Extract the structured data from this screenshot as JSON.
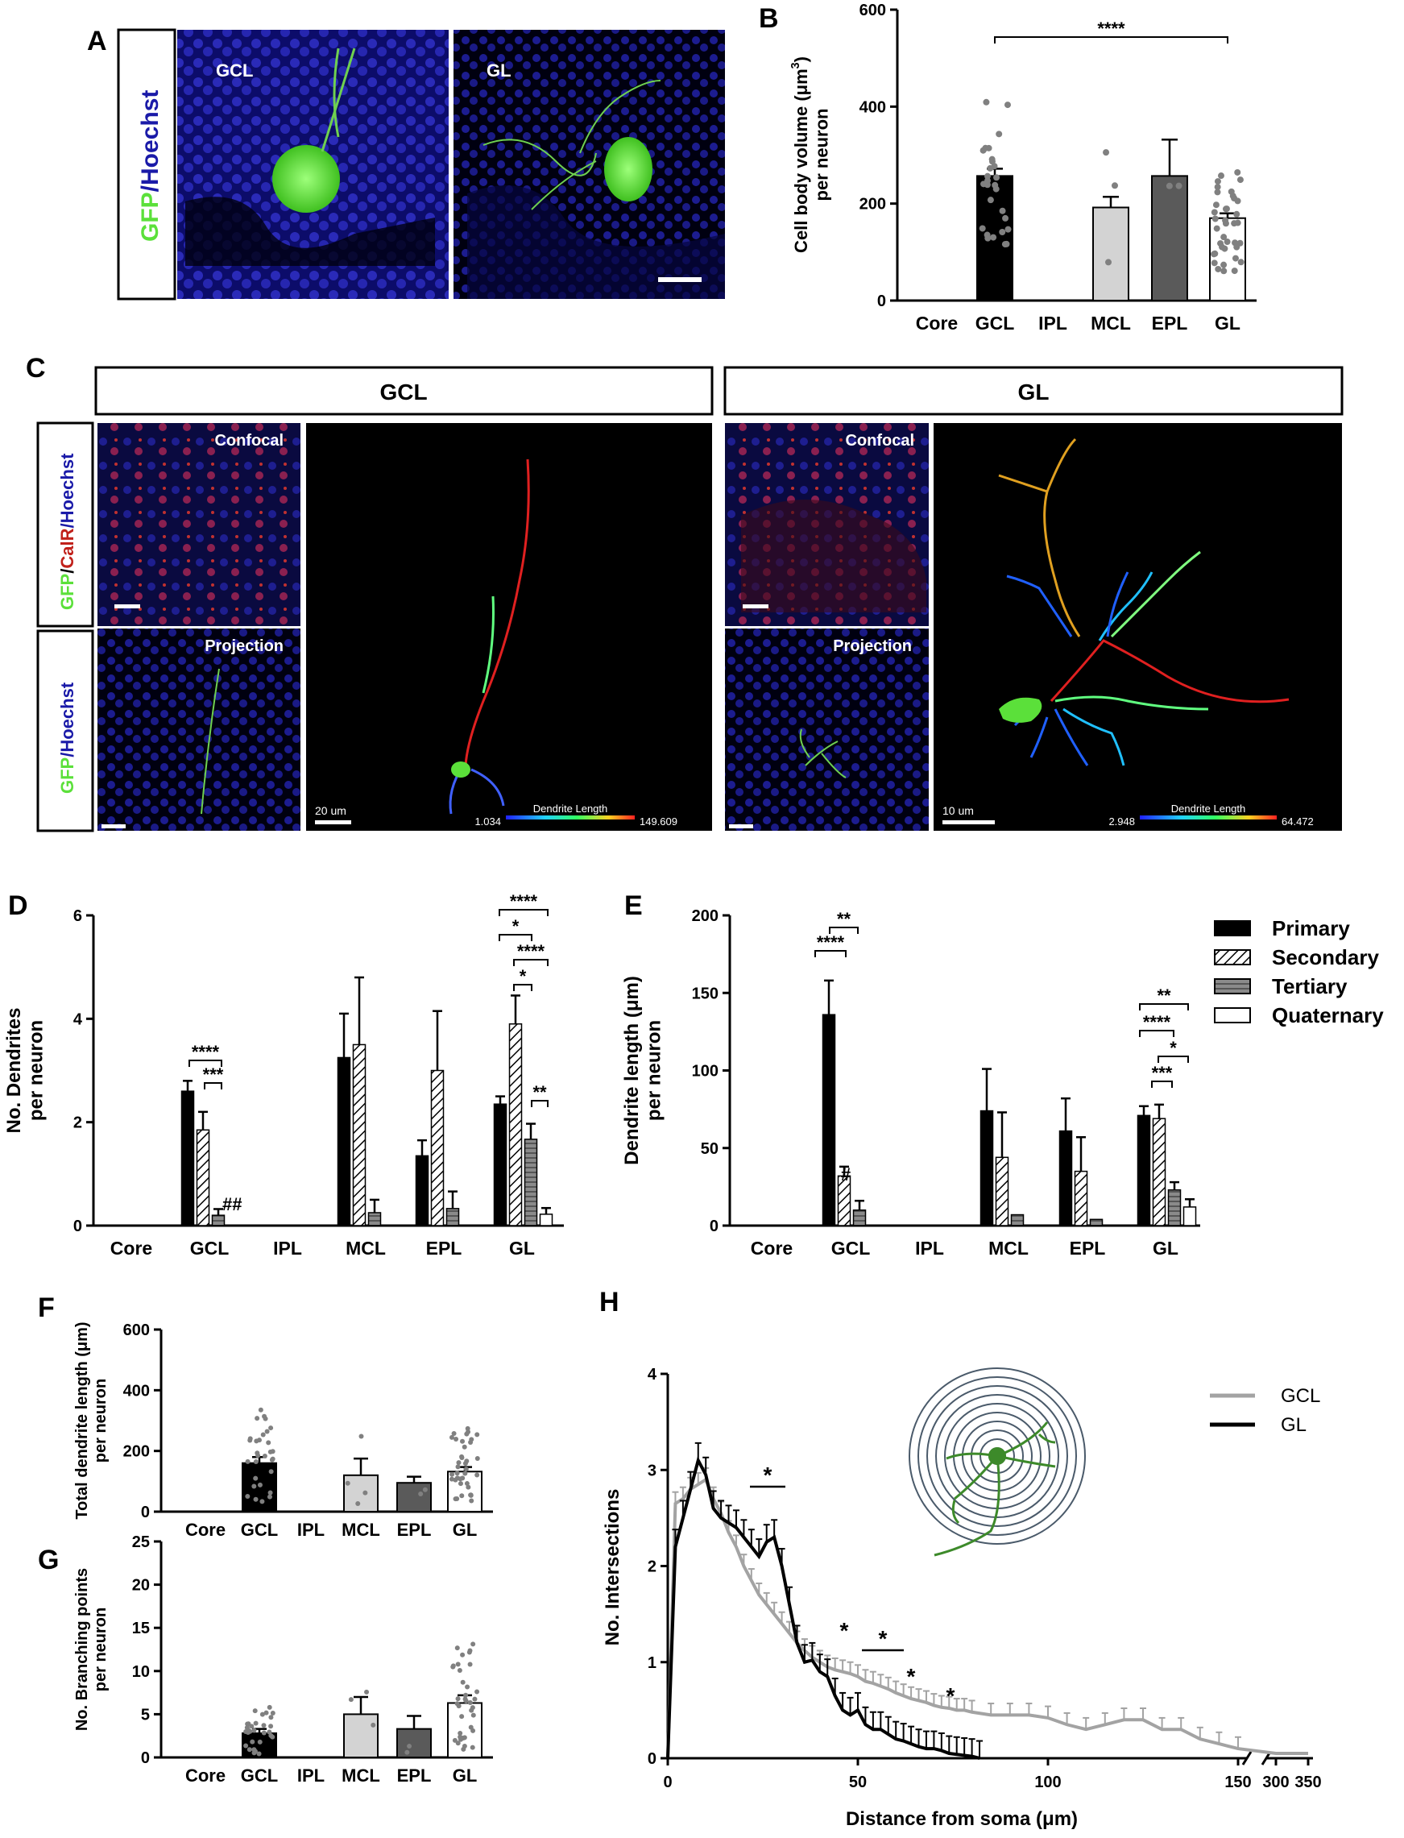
{
  "panels": {
    "A": {
      "label": "A",
      "stain_side": {
        "gfp": "GFP",
        "slash": "/",
        "hoechst": "Hoechst"
      },
      "images": [
        {
          "label": "GCL"
        },
        {
          "label": "GL"
        }
      ]
    },
    "C": {
      "label": "C",
      "headers": [
        "GCL",
        "GL"
      ],
      "side_stains": {
        "top": {
          "gfp": "GFP",
          "s1": "/",
          "calr": "CalR",
          "s2": "/",
          "hoechst": "Hoechst"
        },
        "bottom": {
          "gfp": "GFP",
          "slash": "/",
          "hoechst": "Hoechst"
        }
      },
      "image_labels": {
        "confocal": "Confocal",
        "projection": "Projection"
      },
      "reconstructions": [
        {
          "scale": "20 um",
          "min": "1.034",
          "max": "149.609",
          "legend": "Dendrite Length"
        },
        {
          "scale": "10 um",
          "min": "2.948",
          "max": "64.472",
          "legend": "Dendrite Length"
        }
      ]
    }
  },
  "colors": {
    "gfp": "#5be03a",
    "hoechst": "#1a1aa8",
    "calr": "#c0201a",
    "gcl_bar": "#000000",
    "mcl_bar": "#d3d3d3",
    "epl_bar": "#5a5a5a",
    "gl_bar": "#ffffff",
    "gcl_line": "#a3a3a3",
    "gl_line": "#000000",
    "sholl": "#4a5a6a"
  },
  "chart_data": [
    {
      "panel": "B",
      "type": "bar",
      "ylabel": "Cell body volume (μm³) per neuron",
      "ylabel_line1": "Cell body volume (μm",
      "ylabel_sup": "3",
      "ylabel_close": ")",
      "ylabel_line2": "per neuron",
      "categories": [
        "Core",
        "GCL",
        "IPL",
        "MCL",
        "EPL",
        "GL"
      ],
      "values": [
        null,
        257,
        null,
        192,
        257,
        170
      ],
      "errors": [
        null,
        15,
        null,
        22,
        75,
        10
      ],
      "ylim": [
        0,
        600
      ],
      "yticks": [
        "0",
        "200",
        "400",
        "600"
      ],
      "significance": "****"
    },
    {
      "panel": "D",
      "type": "bar",
      "ylabel_line1": "No. Dendrites",
      "ylabel_line2": "per neuron",
      "categories": [
        "Core",
        "GCL",
        "IPL",
        "MCL",
        "EPL",
        "GL"
      ],
      "series": [
        {
          "name": "Primary",
          "values": [
            null,
            2.6,
            null,
            3.25,
            1.35,
            2.35
          ],
          "errors": [
            null,
            0.2,
            null,
            0.85,
            0.3,
            0.15
          ]
        },
        {
          "name": "Secondary",
          "values": [
            null,
            1.85,
            null,
            3.5,
            3.0,
            3.9
          ],
          "errors": [
            null,
            0.35,
            null,
            1.3,
            1.15,
            0.55
          ]
        },
        {
          "name": "Tertiary",
          "values": [
            null,
            0.2,
            null,
            0.25,
            0.33,
            1.67
          ],
          "errors": [
            null,
            0.12,
            null,
            0.25,
            0.33,
            0.3
          ]
        },
        {
          "name": "Quaternary",
          "values": [
            null,
            null,
            null,
            null,
            null,
            0.22
          ],
          "errors": [
            null,
            null,
            null,
            null,
            null,
            0.12
          ]
        }
      ],
      "ylim": [
        0,
        6
      ],
      "yticks": [
        "0",
        "2",
        "4",
        "6"
      ],
      "annotations": [
        "****",
        "***",
        "##",
        "****",
        "*",
        "****",
        "*",
        "**"
      ]
    },
    {
      "panel": "E",
      "type": "bar",
      "ylabel_line1": "Dendrite length (μm)",
      "ylabel_line2": "per neuron",
      "categories": [
        "Core",
        "GCL",
        "IPL",
        "MCL",
        "EPL",
        "GL"
      ],
      "series": [
        {
          "name": "Primary",
          "values": [
            null,
            136,
            null,
            74,
            61,
            71
          ],
          "errors": [
            null,
            22,
            null,
            27,
            21,
            6
          ]
        },
        {
          "name": "Secondary",
          "values": [
            null,
            32,
            null,
            44,
            35,
            69
          ],
          "errors": [
            null,
            6,
            null,
            29,
            22,
            9
          ]
        },
        {
          "name": "Tertiary",
          "values": [
            null,
            10,
            null,
            7,
            4,
            23
          ],
          "errors": [
            null,
            6,
            null,
            0,
            0,
            5
          ]
        },
        {
          "name": "Quaternary",
          "values": [
            null,
            null,
            null,
            null,
            null,
            12
          ],
          "errors": [
            null,
            null,
            null,
            null,
            null,
            5
          ]
        }
      ],
      "ylim": [
        0,
        200
      ],
      "yticks": [
        "0",
        "50",
        "100",
        "150",
        "200"
      ],
      "annotations": [
        "**",
        "****",
        "#",
        "**",
        "****",
        "*",
        "***"
      ]
    },
    {
      "panel": "F",
      "type": "bar",
      "ylabel_line1": "Total dendrite length (μm)",
      "ylabel_line2": "per neuron",
      "categories": [
        "Core",
        "GCL",
        "IPL",
        "MCL",
        "EPL",
        "GL"
      ],
      "values": [
        null,
        160,
        null,
        120,
        95,
        132
      ],
      "errors": [
        null,
        20,
        null,
        55,
        20,
        15
      ],
      "ylim": [
        0,
        600
      ],
      "yticks": [
        "0",
        "200",
        "400",
        "600"
      ]
    },
    {
      "panel": "G",
      "type": "bar",
      "ylabel_line1": "No. Branching points",
      "ylabel_line2": "per neuron",
      "categories": [
        "Core",
        "GCL",
        "IPL",
        "MCL",
        "EPL",
        "GL"
      ],
      "values": [
        null,
        2.8,
        null,
        5.0,
        3.3,
        6.3
      ],
      "errors": [
        null,
        0.5,
        null,
        2.0,
        1.5,
        0.9
      ],
      "ylim": [
        0,
        25
      ],
      "yticks": [
        "0",
        "5",
        "10",
        "15",
        "20",
        "25"
      ]
    },
    {
      "panel": "H",
      "type": "line",
      "xlabel": "Distance from soma (μm)",
      "ylabel": "No. Intersections",
      "ylim": [
        0,
        4
      ],
      "yticks": [
        "0",
        "1",
        "2",
        "3",
        "4"
      ],
      "xticks": [
        "0",
        "50",
        "100",
        "150",
        "300",
        "350"
      ],
      "series": [
        {
          "name": "GCL",
          "x": [
            0,
            2,
            4,
            6,
            8,
            10,
            12,
            14,
            16,
            18,
            20,
            22,
            24,
            26,
            28,
            30,
            32,
            34,
            36,
            38,
            40,
            42,
            44,
            46,
            48,
            50,
            52,
            54,
            56,
            58,
            60,
            62,
            64,
            66,
            68,
            70,
            72,
            74,
            76,
            78,
            80,
            85,
            90,
            95,
            100,
            105,
            110,
            115,
            120,
            125,
            130,
            135,
            140,
            145,
            150,
            300,
            350
          ],
          "y": [
            0,
            2.65,
            2.7,
            2.8,
            2.85,
            2.9,
            2.7,
            2.55,
            2.35,
            2.2,
            2.0,
            1.85,
            1.7,
            1.6,
            1.5,
            1.4,
            1.3,
            1.2,
            1.12,
            1.05,
            1.0,
            0.95,
            0.92,
            0.9,
            0.88,
            0.85,
            0.8,
            0.78,
            0.75,
            0.72,
            0.68,
            0.65,
            0.62,
            0.6,
            0.58,
            0.55,
            0.53,
            0.52,
            0.5,
            0.5,
            0.48,
            0.45,
            0.45,
            0.45,
            0.42,
            0.35,
            0.3,
            0.35,
            0.4,
            0.4,
            0.3,
            0.3,
            0.2,
            0.15,
            0.1,
            0.05,
            0.05
          ]
        },
        {
          "name": "GL",
          "x": [
            0,
            2,
            4,
            6,
            8,
            10,
            12,
            14,
            16,
            18,
            20,
            22,
            24,
            26,
            28,
            30,
            32,
            34,
            36,
            38,
            40,
            42,
            44,
            46,
            48,
            50,
            52,
            54,
            56,
            58,
            60,
            62,
            64,
            66,
            68,
            70,
            72,
            74,
            76,
            78,
            80,
            82
          ],
          "y": [
            0,
            2.2,
            2.5,
            2.8,
            3.1,
            2.95,
            2.6,
            2.5,
            2.45,
            2.4,
            2.3,
            2.2,
            2.1,
            2.25,
            2.3,
            2.0,
            1.6,
            1.2,
            1.0,
            1.02,
            0.9,
            0.85,
            0.65,
            0.5,
            0.45,
            0.5,
            0.35,
            0.3,
            0.3,
            0.25,
            0.2,
            0.18,
            0.15,
            0.12,
            0.1,
            0.1,
            0.08,
            0.05,
            0.04,
            0.03,
            0.02,
            0
          ]
        }
      ],
      "significance": [
        "*",
        "*",
        "*",
        "*",
        "*"
      ]
    }
  ],
  "legend_de": {
    "items": [
      "Primary",
      "Secondary",
      "Tertiary",
      "Quaternary"
    ]
  }
}
